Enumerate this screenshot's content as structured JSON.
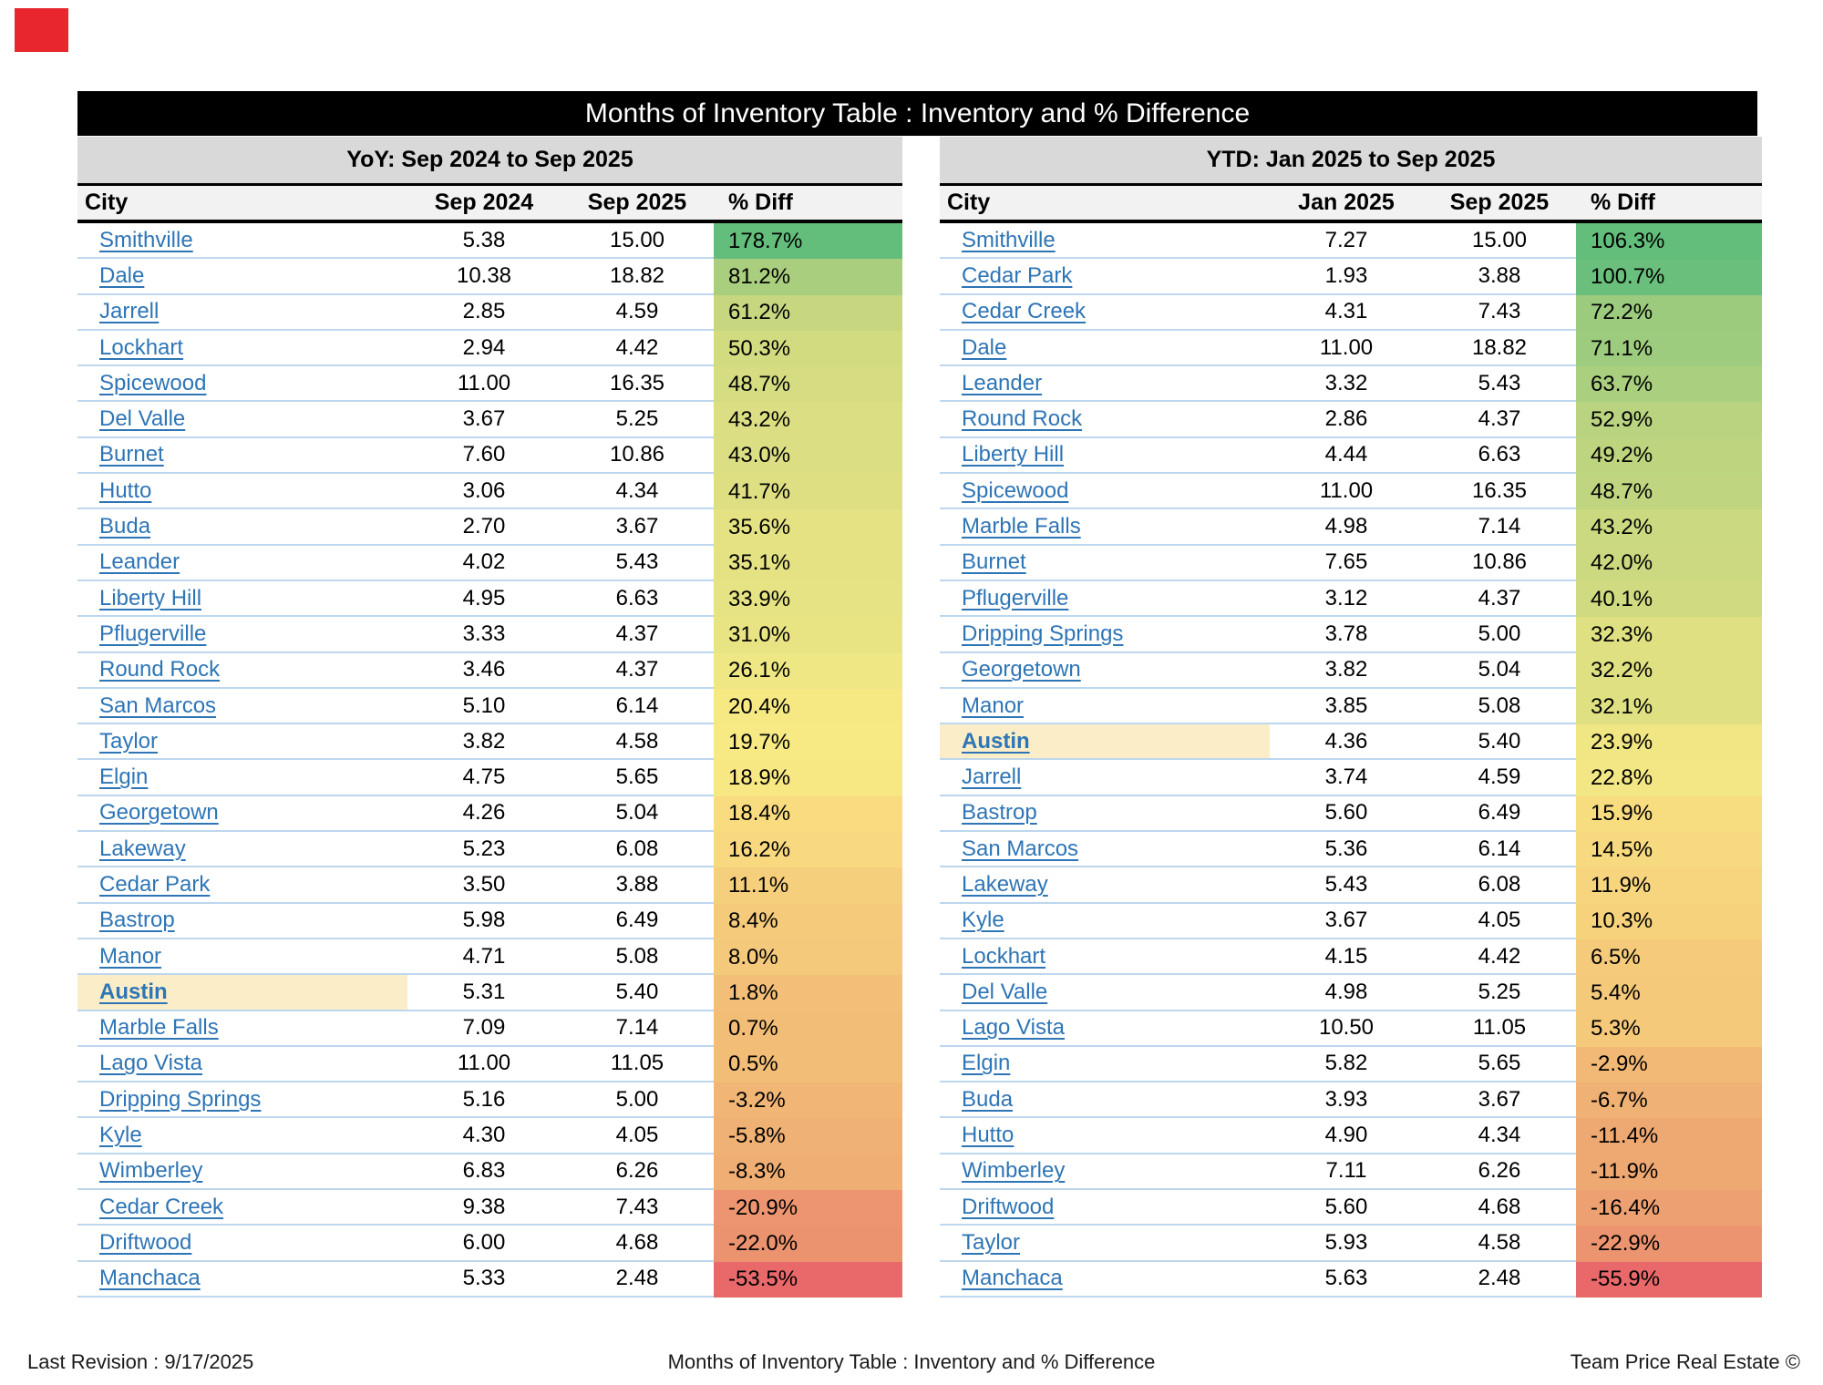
{
  "title": "Months of Inventory Table : Inventory and % Difference",
  "theme": {
    "marker": "#E8262D",
    "title_bg": "#000000",
    "title_fg": "#FFFFFF",
    "subheader_bg": "#D9D9D9",
    "header_bg": "#F2F2F2",
    "divider": "#BDD7EE",
    "link": "#2E75B6",
    "highlight": "#FBEDC8"
  },
  "footer": {
    "left": "Last Revision : 9/17/2025",
    "center": "Months of Inventory Table : Inventory and % Difference",
    "right": "Team Price Real Estate ©"
  },
  "chart_data": [
    {
      "type": "table",
      "title": "YoY: Sep 2024 to Sep 2025",
      "columns": [
        "City",
        "Sep 2024",
        "Sep 2025",
        "% Diff"
      ],
      "rows": [
        {
          "city": "Smithville",
          "v1": "5.38",
          "v2": "15.00",
          "diff": "178.7%",
          "bg": "#63BE7B"
        },
        {
          "city": "Dale",
          "v1": "10.38",
          "v2": "18.82",
          "diff": "81.2%",
          "bg": "#A9CE7E"
        },
        {
          "city": "Jarrell",
          "v1": "2.85",
          "v2": "4.59",
          "diff": "61.2%",
          "bg": "#C6D780"
        },
        {
          "city": "Lockhart",
          "v1": "2.94",
          "v2": "4.42",
          "diff": "50.3%",
          "bg": "#D3DB81"
        },
        {
          "city": "Spicewood",
          "v1": "11.00",
          "v2": "16.35",
          "diff": "48.7%",
          "bg": "#D5DC81"
        },
        {
          "city": "Del Valle",
          "v1": "3.67",
          "v2": "5.25",
          "diff": "43.2%",
          "bg": "#DBDE82"
        },
        {
          "city": "Burnet",
          "v1": "7.60",
          "v2": "10.86",
          "diff": "43.0%",
          "bg": "#DBDE82"
        },
        {
          "city": "Hutto",
          "v1": "3.06",
          "v2": "4.34",
          "diff": "41.7%",
          "bg": "#DDDF82"
        },
        {
          "city": "Buda",
          "v1": "2.70",
          "v2": "3.67",
          "diff": "35.6%",
          "bg": "#E4E283"
        },
        {
          "city": "Leander",
          "v1": "4.02",
          "v2": "5.43",
          "diff": "35.1%",
          "bg": "#E4E283"
        },
        {
          "city": "Liberty Hill",
          "v1": "4.95",
          "v2": "6.63",
          "diff": "33.9%",
          "bg": "#E5E383"
        },
        {
          "city": "Pflugerville",
          "v1": "3.33",
          "v2": "4.37",
          "diff": "31.0%",
          "bg": "#E9E483"
        },
        {
          "city": "Round Rock",
          "v1": "3.46",
          "v2": "4.37",
          "diff": "26.1%",
          "bg": "#EFE784"
        },
        {
          "city": "San Marcos",
          "v1": "5.10",
          "v2": "6.14",
          "diff": "20.4%",
          "bg": "#F6E984"
        },
        {
          "city": "Taylor",
          "v1": "3.82",
          "v2": "4.58",
          "diff": "19.7%",
          "bg": "#F7E984"
        },
        {
          "city": "Elgin",
          "v1": "4.75",
          "v2": "5.65",
          "diff": "18.9%",
          "bg": "#F8E883"
        },
        {
          "city": "Georgetown",
          "v1": "4.26",
          "v2": "5.04",
          "diff": "18.4%",
          "bg": "#F9DC80"
        },
        {
          "city": "Lakeway",
          "v1": "5.23",
          "v2": "6.08",
          "diff": "16.2%",
          "bg": "#F8D97F"
        },
        {
          "city": "Cedar Park",
          "v1": "3.50",
          "v2": "3.88",
          "diff": "11.1%",
          "bg": "#F6CF7C"
        },
        {
          "city": "Bastrop",
          "v1": "5.98",
          "v2": "6.49",
          "diff": "8.4%",
          "bg": "#F5CA7B"
        },
        {
          "city": "Manor",
          "v1": "4.71",
          "v2": "5.08",
          "diff": "8.0%",
          "bg": "#F5C97B"
        },
        {
          "city": "Austin",
          "v1": "5.31",
          "v2": "5.40",
          "diff": "1.8%",
          "bg": "#F3BF78",
          "hl": true
        },
        {
          "city": "Marble Falls",
          "v1": "7.09",
          "v2": "7.14",
          "diff": "0.7%",
          "bg": "#F2BD77"
        },
        {
          "city": "Lago Vista",
          "v1": "11.00",
          "v2": "11.05",
          "diff": "0.5%",
          "bg": "#F2BD77"
        },
        {
          "city": "Dripping Springs",
          "v1": "5.16",
          "v2": "5.00",
          "diff": "-3.2%",
          "bg": "#F1B675"
        },
        {
          "city": "Kyle",
          "v1": "4.30",
          "v2": "4.05",
          "diff": "-5.8%",
          "bg": "#F0B274"
        },
        {
          "city": "Wimberley",
          "v1": "6.83",
          "v2": "6.26",
          "diff": "-8.3%",
          "bg": "#EFAE73"
        },
        {
          "city": "Cedar Creek",
          "v1": "9.38",
          "v2": "7.43",
          "diff": "-20.9%",
          "bg": "#EC9570"
        },
        {
          "city": "Driftwood",
          "v1": "6.00",
          "v2": "4.68",
          "diff": "-22.0%",
          "bg": "#EB936F"
        },
        {
          "city": "Manchaca",
          "v1": "5.33",
          "v2": "2.48",
          "diff": "-53.5%",
          "bg": "#E9696B"
        }
      ]
    },
    {
      "type": "table",
      "title": "YTD: Jan 2025 to Sep 2025",
      "columns": [
        "City",
        "Jan 2025",
        "Sep 2025",
        "% Diff"
      ],
      "rows": [
        {
          "city": "Smithville",
          "v1": "7.27",
          "v2": "15.00",
          "diff": "106.3%",
          "bg": "#63BE7B"
        },
        {
          "city": "Cedar Park",
          "v1": "1.93",
          "v2": "3.88",
          "diff": "100.7%",
          "bg": "#69BF7B"
        },
        {
          "city": "Cedar Creek",
          "v1": "4.31",
          "v2": "7.43",
          "diff": "72.2%",
          "bg": "#9CCB7E"
        },
        {
          "city": "Dale",
          "v1": "11.00",
          "v2": "18.82",
          "diff": "71.1%",
          "bg": "#9DCC7E"
        },
        {
          "city": "Leander",
          "v1": "3.32",
          "v2": "5.43",
          "diff": "63.7%",
          "bg": "#A9CF7F"
        },
        {
          "city": "Round Rock",
          "v1": "2.86",
          "v2": "4.37",
          "diff": "52.9%",
          "bg": "#B9D380"
        },
        {
          "city": "Liberty Hill",
          "v1": "4.44",
          "v2": "6.63",
          "diff": "49.2%",
          "bg": "#BED580"
        },
        {
          "city": "Spicewood",
          "v1": "11.00",
          "v2": "16.35",
          "diff": "48.7%",
          "bg": "#BFD580"
        },
        {
          "city": "Marble Falls",
          "v1": "4.98",
          "v2": "7.14",
          "diff": "43.2%",
          "bg": "#CBD981"
        },
        {
          "city": "Burnet",
          "v1": "7.65",
          "v2": "10.86",
          "diff": "42.0%",
          "bg": "#CCD981"
        },
        {
          "city": "Pflugerville",
          "v1": "3.12",
          "v2": "4.37",
          "diff": "40.1%",
          "bg": "#CFDA81"
        },
        {
          "city": "Dripping Springs",
          "v1": "3.78",
          "v2": "5.00",
          "diff": "32.3%",
          "bg": "#DEE082"
        },
        {
          "city": "Georgetown",
          "v1": "3.82",
          "v2": "5.04",
          "diff": "32.2%",
          "bg": "#DEE082"
        },
        {
          "city": "Manor",
          "v1": "3.85",
          "v2": "5.08",
          "diff": "32.1%",
          "bg": "#DEE082"
        },
        {
          "city": "Austin",
          "v1": "4.36",
          "v2": "5.40",
          "diff": "23.9%",
          "bg": "#F0E683",
          "hl": true
        },
        {
          "city": "Jarrell",
          "v1": "3.74",
          "v2": "4.59",
          "diff": "22.8%",
          "bg": "#F2E784"
        },
        {
          "city": "Bastrop",
          "v1": "5.60",
          "v2": "6.49",
          "diff": "15.9%",
          "bg": "#F8DC80"
        },
        {
          "city": "San Marcos",
          "v1": "5.36",
          "v2": "6.14",
          "diff": "14.5%",
          "bg": "#F7DA7F"
        },
        {
          "city": "Lakeway",
          "v1": "5.43",
          "v2": "6.08",
          "diff": "11.9%",
          "bg": "#F7D57E"
        },
        {
          "city": "Kyle",
          "v1": "3.67",
          "v2": "4.05",
          "diff": "10.3%",
          "bg": "#F6D27D"
        },
        {
          "city": "Lockhart",
          "v1": "4.15",
          "v2": "4.42",
          "diff": "6.5%",
          "bg": "#F5CB7B"
        },
        {
          "city": "Del Valle",
          "v1": "4.98",
          "v2": "5.25",
          "diff": "5.4%",
          "bg": "#F4C97A"
        },
        {
          "city": "Lago Vista",
          "v1": "10.50",
          "v2": "11.05",
          "diff": "5.3%",
          "bg": "#F4C97A"
        },
        {
          "city": "Elgin",
          "v1": "5.82",
          "v2": "5.65",
          "diff": "-2.9%",
          "bg": "#F1B876"
        },
        {
          "city": "Buda",
          "v1": "3.93",
          "v2": "3.67",
          "diff": "-6.7%",
          "bg": "#F0B174"
        },
        {
          "city": "Hutto",
          "v1": "4.90",
          "v2": "4.34",
          "diff": "-11.4%",
          "bg": "#EEA972"
        },
        {
          "city": "Wimberley",
          "v1": "7.11",
          "v2": "6.26",
          "diff": "-11.9%",
          "bg": "#EEA872"
        },
        {
          "city": "Driftwood",
          "v1": "5.60",
          "v2": "4.68",
          "diff": "-16.4%",
          "bg": "#EDA071"
        },
        {
          "city": "Taylor",
          "v1": "5.93",
          "v2": "4.58",
          "diff": "-22.9%",
          "bg": "#EB946F"
        },
        {
          "city": "Manchaca",
          "v1": "5.63",
          "v2": "2.48",
          "diff": "-55.9%",
          "bg": "#E9696B"
        }
      ]
    }
  ]
}
